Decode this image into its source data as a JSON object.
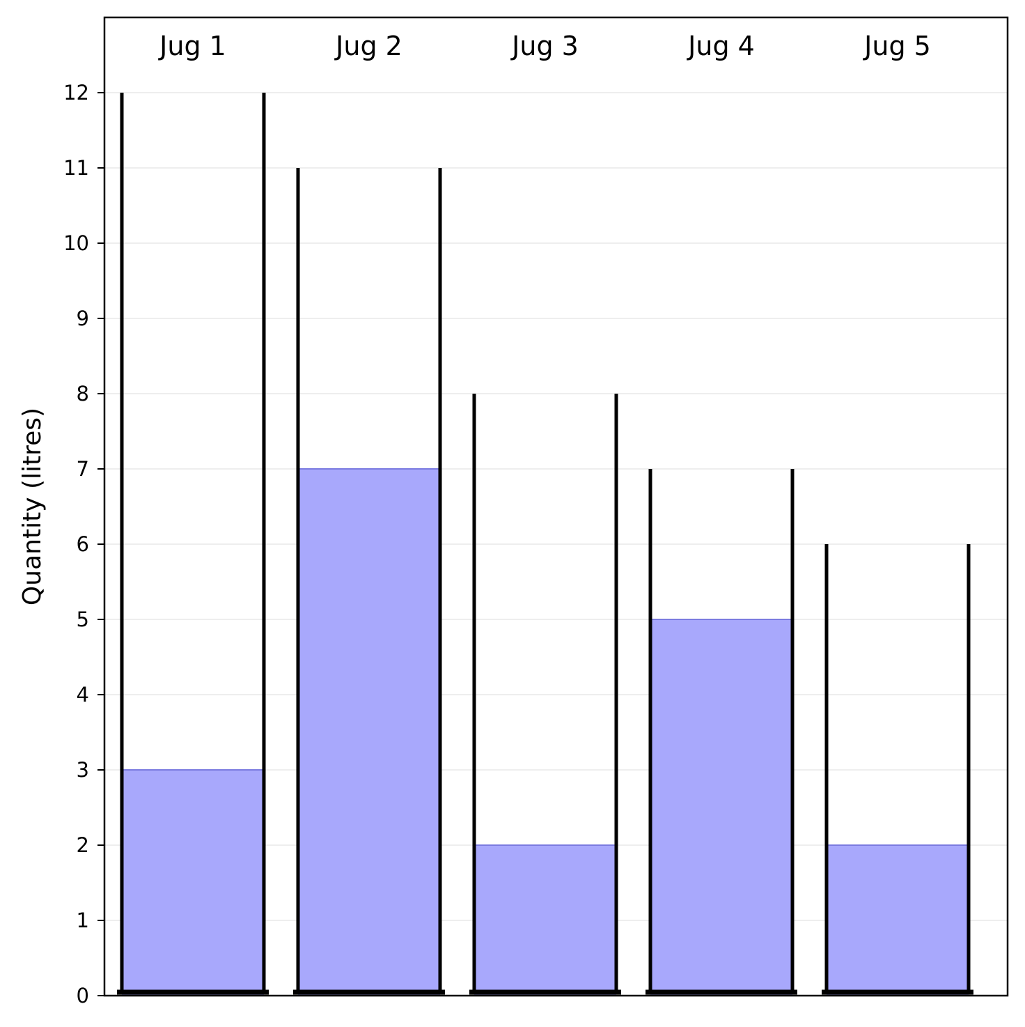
{
  "chart_data": {
    "type": "bar",
    "ylabel": "Quantity (litres)",
    "ylim": [
      0,
      13
    ],
    "yticks": [
      0,
      1,
      2,
      3,
      4,
      5,
      6,
      7,
      8,
      9,
      10,
      11,
      12
    ],
    "grid": true,
    "jugs": [
      {
        "label": "Jug 1",
        "capacity": 12,
        "quantity": 3
      },
      {
        "label": "Jug 2",
        "capacity": 11,
        "quantity": 7
      },
      {
        "label": "Jug 3",
        "capacity": 8,
        "quantity": 2
      },
      {
        "label": "Jug 4",
        "capacity": 7,
        "quantity": 5
      },
      {
        "label": "Jug 5",
        "capacity": 6,
        "quantity": 2
      }
    ],
    "colors": {
      "fill": "#a8a8fc",
      "fill_edge": "#7b7be0",
      "jug_wall": "#000000",
      "grid": "#dcdcdc"
    }
  }
}
